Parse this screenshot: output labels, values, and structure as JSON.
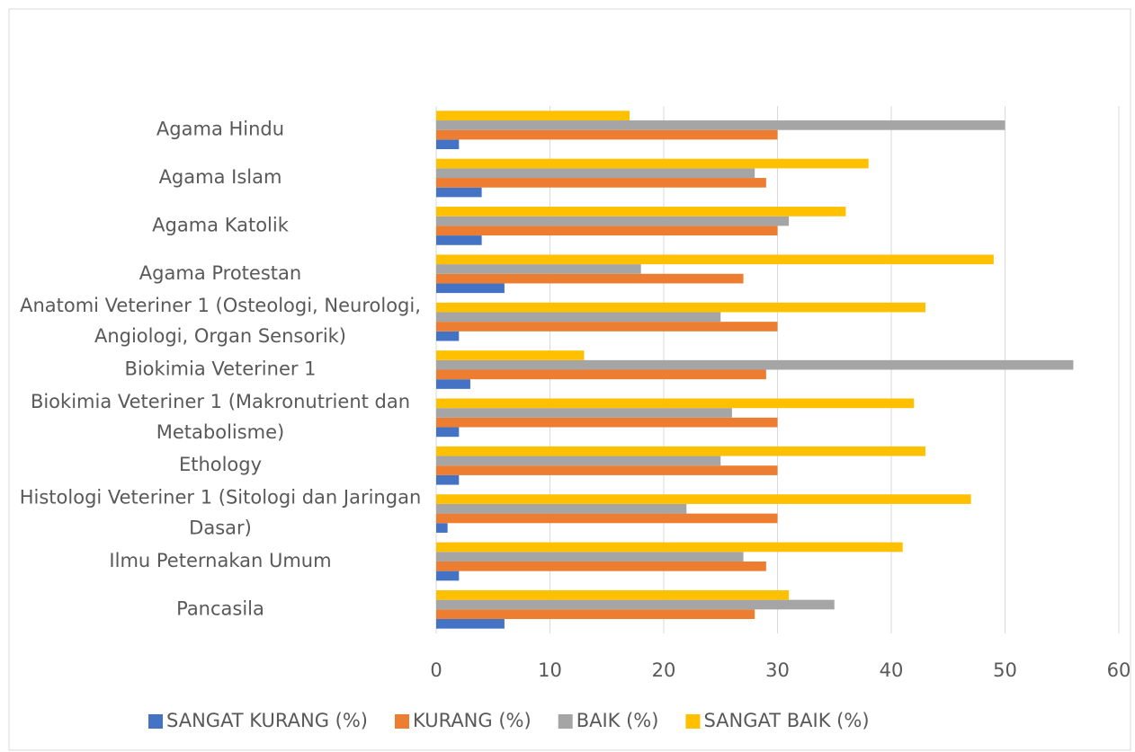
{
  "chart_data": {
    "type": "bar",
    "orientation": "horizontal",
    "categories": [
      "Agama Hindu",
      "Agama Islam",
      "Agama Katolik",
      "Agama Protestan",
      "Anatomi Veteriner 1 (Osteologi, Neurologi, Angiologi, Organ Sensorik)",
      "Biokimia Veteriner 1",
      "Biokimia Veteriner 1 (Makronutrient dan Metabolisme)",
      "Ethology",
      "Histologi Veteriner 1 (Sitologi dan Jaringan Dasar)",
      "Ilmu Peternakan Umum",
      "Pancasila"
    ],
    "series": [
      {
        "name": "SANGAT KURANG (%)",
        "color": "#4472c4",
        "values": [
          2,
          4,
          4,
          6,
          2,
          3,
          2,
          2,
          1,
          2,
          6
        ]
      },
      {
        "name": "KURANG (%)",
        "color": "#ed7d31",
        "values": [
          30,
          29,
          30,
          27,
          30,
          29,
          30,
          30,
          30,
          29,
          28
        ]
      },
      {
        "name": "BAIK (%)",
        "color": "#a5a5a5",
        "values": [
          50,
          28,
          31,
          18,
          25,
          56,
          26,
          25,
          22,
          27,
          35
        ]
      },
      {
        "name": "SANGAT BAIK (%)",
        "color": "#ffc000",
        "values": [
          17,
          38,
          36,
          49,
          43,
          13,
          42,
          43,
          47,
          41,
          31
        ]
      }
    ],
    "xlim": [
      0,
      60
    ],
    "xticks": [
      0,
      10,
      20,
      30,
      40,
      50,
      60
    ],
    "grid": true,
    "legend": "bottom"
  }
}
